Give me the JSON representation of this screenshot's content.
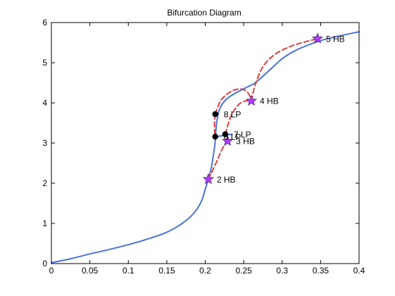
{
  "chart_data": {
    "type": "line",
    "title": "Bifurcation Diagram",
    "xlabel": "",
    "ylabel": "",
    "xlim": [
      0,
      0.4
    ],
    "ylim": [
      0,
      6
    ],
    "xticks": [
      0,
      0.05,
      0.1,
      0.15,
      0.2,
      0.25,
      0.3,
      0.35,
      0.4
    ],
    "xtick_labels": [
      "0",
      "0.05",
      "0.1",
      "0.15",
      "0.2",
      "0.25",
      "0.3",
      "0.35",
      "0.4"
    ],
    "yticks": [
      0,
      1,
      2,
      3,
      4,
      5,
      6
    ],
    "ytick_labels": [
      "0",
      "1",
      "2",
      "3",
      "4",
      "5",
      "6"
    ],
    "grid": false,
    "colors": {
      "equilibrium": "#4a72d9",
      "periodic": "#e03c3c",
      "hopf_marker": "#b13dff",
      "lp_marker": "#000000"
    },
    "series": [
      {
        "style": "solid",
        "points": [
          [
            0,
            0.02
          ],
          [
            0.025,
            0.12
          ],
          [
            0.05,
            0.24
          ],
          [
            0.075,
            0.35
          ],
          [
            0.1,
            0.47
          ],
          [
            0.125,
            0.61
          ],
          [
            0.15,
            0.78
          ],
          [
            0.17,
            1.0
          ],
          [
            0.185,
            1.25
          ],
          [
            0.195,
            1.55
          ],
          [
            0.2,
            1.85
          ],
          [
            0.204,
            2.1
          ],
          [
            0.208,
            2.4
          ],
          [
            0.211,
            2.75
          ],
          [
            0.213,
            3.05
          ],
          [
            0.214,
            3.35
          ],
          [
            0.216,
            3.65
          ],
          [
            0.22,
            3.9
          ],
          [
            0.228,
            4.1
          ],
          [
            0.24,
            4.25
          ],
          [
            0.255,
            4.4
          ],
          [
            0.265,
            4.5
          ],
          [
            0.28,
            4.75
          ],
          [
            0.3,
            5.1
          ],
          [
            0.32,
            5.33
          ],
          [
            0.35,
            5.55
          ],
          [
            0.375,
            5.67
          ],
          [
            0.4,
            5.77
          ]
        ]
      },
      {
        "style": "solid",
        "points": [
          [
            0.213,
            3.15
          ],
          [
            0.218,
            3.17
          ],
          [
            0.226,
            3.2
          ],
          [
            0.235,
            3.22
          ]
        ]
      },
      {
        "style": "dashed",
        "points": [
          [
            0.213,
            3.72
          ],
          [
            0.212,
            3.45
          ],
          [
            0.213,
            3.15
          ]
        ]
      },
      {
        "style": "dashed",
        "points": [
          [
            0.213,
            3.72
          ],
          [
            0.221,
            4.08
          ],
          [
            0.235,
            4.3
          ],
          [
            0.248,
            4.34
          ],
          [
            0.256,
            4.24
          ],
          [
            0.26,
            4.05
          ]
        ]
      },
      {
        "style": "dashed",
        "points": [
          [
            0.204,
            2.1
          ],
          [
            0.214,
            2.5
          ],
          [
            0.222,
            2.85
          ],
          [
            0.229,
            3.05
          ]
        ]
      },
      {
        "style": "dashed",
        "points": [
          [
            0.226,
            3.22
          ],
          [
            0.233,
            3.65
          ],
          [
            0.243,
            3.95
          ],
          [
            0.253,
            4.05
          ],
          [
            0.26,
            4.05
          ]
        ]
      },
      {
        "style": "dashed",
        "points": [
          [
            0.26,
            4.05
          ],
          [
            0.265,
            4.45
          ],
          [
            0.275,
            4.9
          ],
          [
            0.29,
            5.2
          ],
          [
            0.31,
            5.4
          ],
          [
            0.33,
            5.52
          ],
          [
            0.346,
            5.6
          ]
        ]
      }
    ],
    "special_points": [
      {
        "kind": "HB",
        "label": "2  HB",
        "x": 0.204,
        "y": 2.1
      },
      {
        "kind": "HB",
        "label": "3  HB",
        "x": 0.229,
        "y": 3.05
      },
      {
        "kind": "HB",
        "label": "4  HB",
        "x": 0.26,
        "y": 4.05
      },
      {
        "kind": "HB",
        "label": "5  HB",
        "x": 0.346,
        "y": 5.6
      },
      {
        "kind": "LP",
        "label": "6  LP",
        "x": 0.213,
        "y": 3.16
      },
      {
        "kind": "LP",
        "label": "7  LP",
        "x": 0.226,
        "y": 3.22
      },
      {
        "kind": "LP",
        "label": "8  LP",
        "x": 0.213,
        "y": 3.72
      }
    ]
  }
}
